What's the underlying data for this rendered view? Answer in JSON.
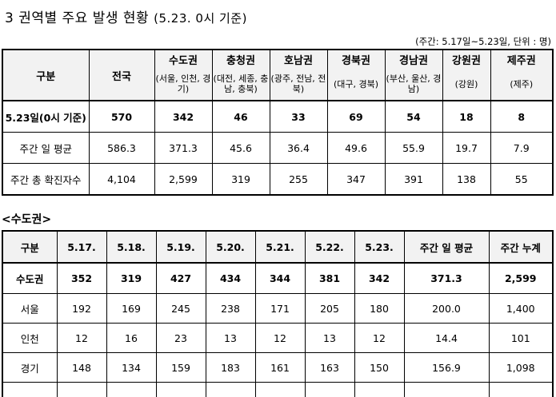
{
  "title": {
    "main": "3 권역별 주요 발생 현황",
    "sub": "(5.23. 0시 기준)"
  },
  "note": "(주간: 5.17일~5.23일, 단위 : 명)",
  "region_table": {
    "col_header": "구분",
    "national": "전국",
    "regions": [
      {
        "name": "수도권",
        "sub": "(서울, 인천, 경기)"
      },
      {
        "name": "충청권",
        "sub": "(대전, 세종, 충남, 충북)"
      },
      {
        "name": "호남권",
        "sub": "(광주, 전남, 전북)"
      },
      {
        "name": "경북권",
        "sub": "(대구, 경북)"
      },
      {
        "name": "경남권",
        "sub": "(부산, 울산, 경남)"
      },
      {
        "name": "강원권",
        "sub": "(강원)"
      },
      {
        "name": "제주권",
        "sub": "(제주)"
      }
    ],
    "rows": [
      {
        "label": "5.23일(0시 기준)",
        "values": [
          "570",
          "342",
          "46",
          "33",
          "69",
          "54",
          "18",
          "8"
        ]
      },
      {
        "label": "주간 일 평균",
        "values": [
          "586.3",
          "371.3",
          "45.6",
          "36.4",
          "49.6",
          "55.9",
          "19.7",
          "7.9"
        ]
      },
      {
        "label": "주간 총 확진자수",
        "values": [
          "4,104",
          "2,599",
          "319",
          "255",
          "347",
          "391",
          "138",
          "55"
        ]
      }
    ]
  },
  "capital_section": {
    "label": "<수도권>",
    "headers": [
      "구분",
      "5.17.",
      "5.18.",
      "5.19.",
      "5.20.",
      "5.21.",
      "5.22.",
      "5.23.",
      "주간 일 평균",
      "주간 누계"
    ],
    "rows": [
      {
        "label": "수도권",
        "values": [
          "352",
          "319",
          "427",
          "434",
          "344",
          "381",
          "342",
          "371.3",
          "2,599"
        ]
      },
      {
        "label": "서울",
        "values": [
          "192",
          "169",
          "245",
          "238",
          "171",
          "205",
          "180",
          "200.0",
          "1,400"
        ]
      },
      {
        "label": "인천",
        "values": [
          "12",
          "16",
          "23",
          "13",
          "12",
          "13",
          "12",
          "14.4",
          "101"
        ]
      },
      {
        "label": "경기",
        "values": [
          "148",
          "134",
          "159",
          "183",
          "161",
          "163",
          "150",
          "156.9",
          "1,098"
        ]
      }
    ]
  }
}
